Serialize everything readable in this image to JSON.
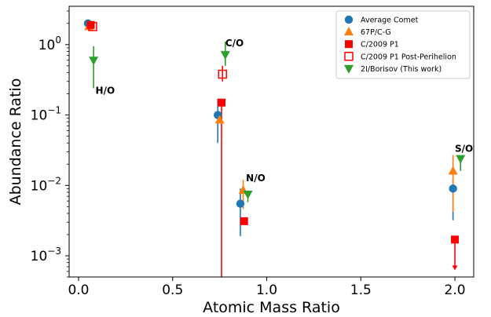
{
  "chart_data": {
    "type": "scatter",
    "xlabel": "Atomic Mass Ratio",
    "ylabel": "Abundance Ratio",
    "xlim": [
      -0.05,
      2.1
    ],
    "ylim": [
      0.0005,
      3.5
    ],
    "yscale": "log",
    "xticks": [
      {
        "value": 0.0,
        "label": "0.0"
      },
      {
        "value": 0.5,
        "label": "0.5"
      },
      {
        "value": 1.0,
        "label": "1.0"
      },
      {
        "value": 1.5,
        "label": "1.5"
      },
      {
        "value": 2.0,
        "label": "2.0"
      }
    ],
    "yticks": [
      {
        "exp": 0,
        "value": 1
      },
      {
        "exp": -1,
        "value": 0.1
      },
      {
        "exp": -2,
        "value": 0.01
      },
      {
        "exp": -3,
        "value": 0.001
      }
    ],
    "legend_position": "top-right",
    "grid": false,
    "annotations": [
      {
        "text": "H/O",
        "x": 0.09,
        "y": 0.2
      },
      {
        "text": "C/O",
        "x": 0.78,
        "y": 0.95
      },
      {
        "text": "N/O",
        "x": 0.89,
        "y": 0.0115
      },
      {
        "text": "S/O",
        "x": 2.0,
        "y": 0.03
      }
    ],
    "series": [
      {
        "name": "Average Comet",
        "marker": "circle",
        "color": "#1f77b4",
        "points": [
          {
            "x": 0.05,
            "y": 2.0
          },
          {
            "x": 0.74,
            "y": 0.1,
            "ylo": 0.04,
            "yhi": 0.17
          },
          {
            "x": 0.86,
            "y": 0.0055,
            "ylo": 0.0019,
            "yhi": 0.009
          },
          {
            "x": 1.99,
            "y": 0.009,
            "ylo": 0.0032,
            "yhi": 0.012
          }
        ]
      },
      {
        "name": "67P/C-G",
        "marker": "triangle-up",
        "color": "#ff7f0e",
        "points": [
          {
            "x": 0.055,
            "y": 1.8
          },
          {
            "x": 0.75,
            "y": 0.085
          },
          {
            "x": 0.875,
            "y": 0.0085,
            "ylo": 0.0046,
            "yhi": 0.012
          },
          {
            "x": 1.99,
            "y": 0.016,
            "ylo": 0.0042,
            "yhi": 0.027
          }
        ]
      },
      {
        "name": "C/2009 P1",
        "marker": "square",
        "color": "#ff0000",
        "points": [
          {
            "x": 0.065,
            "y": 1.9
          },
          {
            "x": 0.76,
            "y": 0.15,
            "ylo": 0.0005
          },
          {
            "x": 0.88,
            "y": 0.0031
          },
          {
            "x": 2.0,
            "y": 0.0017,
            "upper_limit": true
          }
        ]
      },
      {
        "name": "C/2009 P1 Post-Perihelion",
        "marker": "square-open",
        "color": "#ff0000",
        "points": [
          {
            "x": 0.075,
            "y": 1.8
          },
          {
            "x": 0.765,
            "y": 0.38,
            "ylo": 0.3,
            "yhi": 0.5
          }
        ]
      },
      {
        "name": "2I/Borisov (This work)",
        "marker": "triangle-down",
        "color": "#2ca02c",
        "points": [
          {
            "x": 0.08,
            "y": 0.6,
            "ylo": 0.24,
            "yhi": 0.95
          },
          {
            "x": 0.78,
            "y": 0.72,
            "ylo": 0.5,
            "yhi": 1.1
          },
          {
            "x": 0.9,
            "y": 0.0075,
            "ylo": 0.0058
          },
          {
            "x": 2.03,
            "y": 0.024,
            "ylo": 0.016
          }
        ]
      }
    ]
  }
}
